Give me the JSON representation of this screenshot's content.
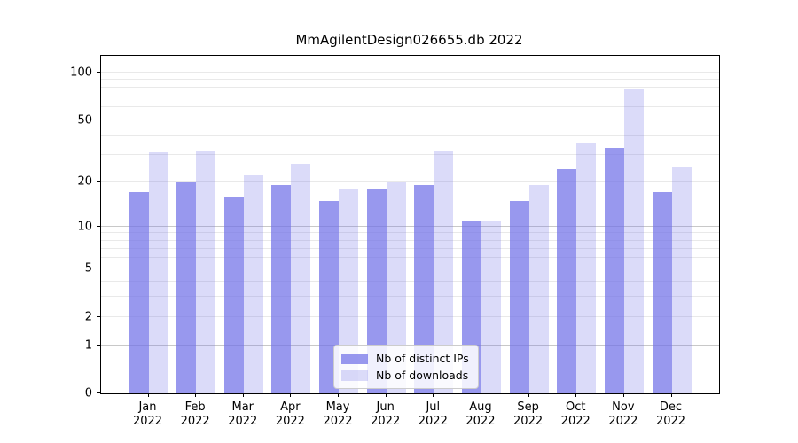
{
  "title": "MmAgilentDesign026655.db 2022",
  "chart_data": {
    "type": "bar",
    "title": "MmAgilentDesign026655.db 2022",
    "scale": "log1p",
    "categories": [
      "Jan",
      "Feb",
      "Mar",
      "Apr",
      "May",
      "Jun",
      "Jul",
      "Aug",
      "Sep",
      "Oct",
      "Nov",
      "Dec"
    ],
    "x_sublabel": "2022",
    "series": [
      {
        "name": "Nb of distinct IPs",
        "color": "rgba(112,112,232,0.72)",
        "values": [
          17,
          20,
          16,
          19,
          15,
          18,
          19,
          11,
          15,
          24,
          33,
          17
        ]
      },
      {
        "name": "Nb of downloads",
        "color": "rgba(112,112,232,0.25)",
        "values": [
          31,
          32,
          22,
          26,
          18,
          20,
          32,
          11,
          19,
          36,
          78,
          25
        ]
      }
    ],
    "yticks": [
      100,
      50,
      20,
      10,
      5,
      2,
      1,
      0
    ],
    "ylim": [
      0,
      127.5
    ],
    "grid": {
      "emphasis_lines": [
        1,
        10
      ],
      "emphasis_color": "#c8c8c8",
      "normal_lines": [
        2,
        3,
        4,
        5,
        6,
        7,
        8,
        9,
        20,
        30,
        40,
        50,
        60,
        70,
        80,
        90,
        100
      ],
      "normal_color": "#e9e9e9"
    },
    "legend_position": "lower-center"
  }
}
